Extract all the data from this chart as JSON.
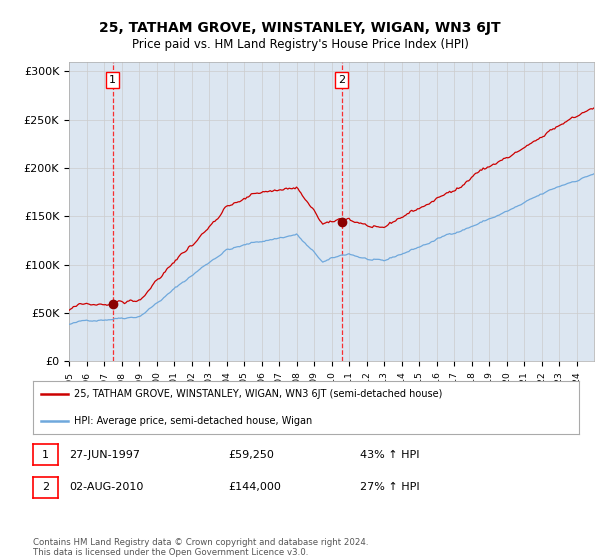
{
  "title": "25, TATHAM GROVE, WINSTANLEY, WIGAN, WN3 6JT",
  "subtitle": "Price paid vs. HM Land Registry's House Price Index (HPI)",
  "legend_line1": "25, TATHAM GROVE, WINSTANLEY, WIGAN, WN3 6JT (semi-detached house)",
  "legend_line2": "HPI: Average price, semi-detached house, Wigan",
  "footer": "Contains HM Land Registry data © Crown copyright and database right 2024.\nThis data is licensed under the Open Government Licence v3.0.",
  "annotation1_date": "27-JUN-1997",
  "annotation1_price": "£59,250",
  "annotation1_hpi": "43% ↑ HPI",
  "annotation1_year": 1997.49,
  "annotation1_value": 59250,
  "annotation2_date": "02-AUG-2010",
  "annotation2_price": "£144,000",
  "annotation2_hpi": "27% ↑ HPI",
  "annotation2_year": 2010.58,
  "annotation2_value": 144000,
  "hpi_color": "#6fa8dc",
  "price_color": "#cc0000",
  "dot_color": "#8b0000",
  "background_color": "#dce6f1",
  "plot_bg": "#ffffff",
  "grid_color": "#cccccc",
  "ylim": [
    0,
    310000
  ],
  "yticks": [
    0,
    50000,
    100000,
    150000,
    200000,
    250000,
    300000
  ],
  "ytick_labels": [
    "£0",
    "£50K",
    "£100K",
    "£150K",
    "£200K",
    "£250K",
    "£300K"
  ]
}
